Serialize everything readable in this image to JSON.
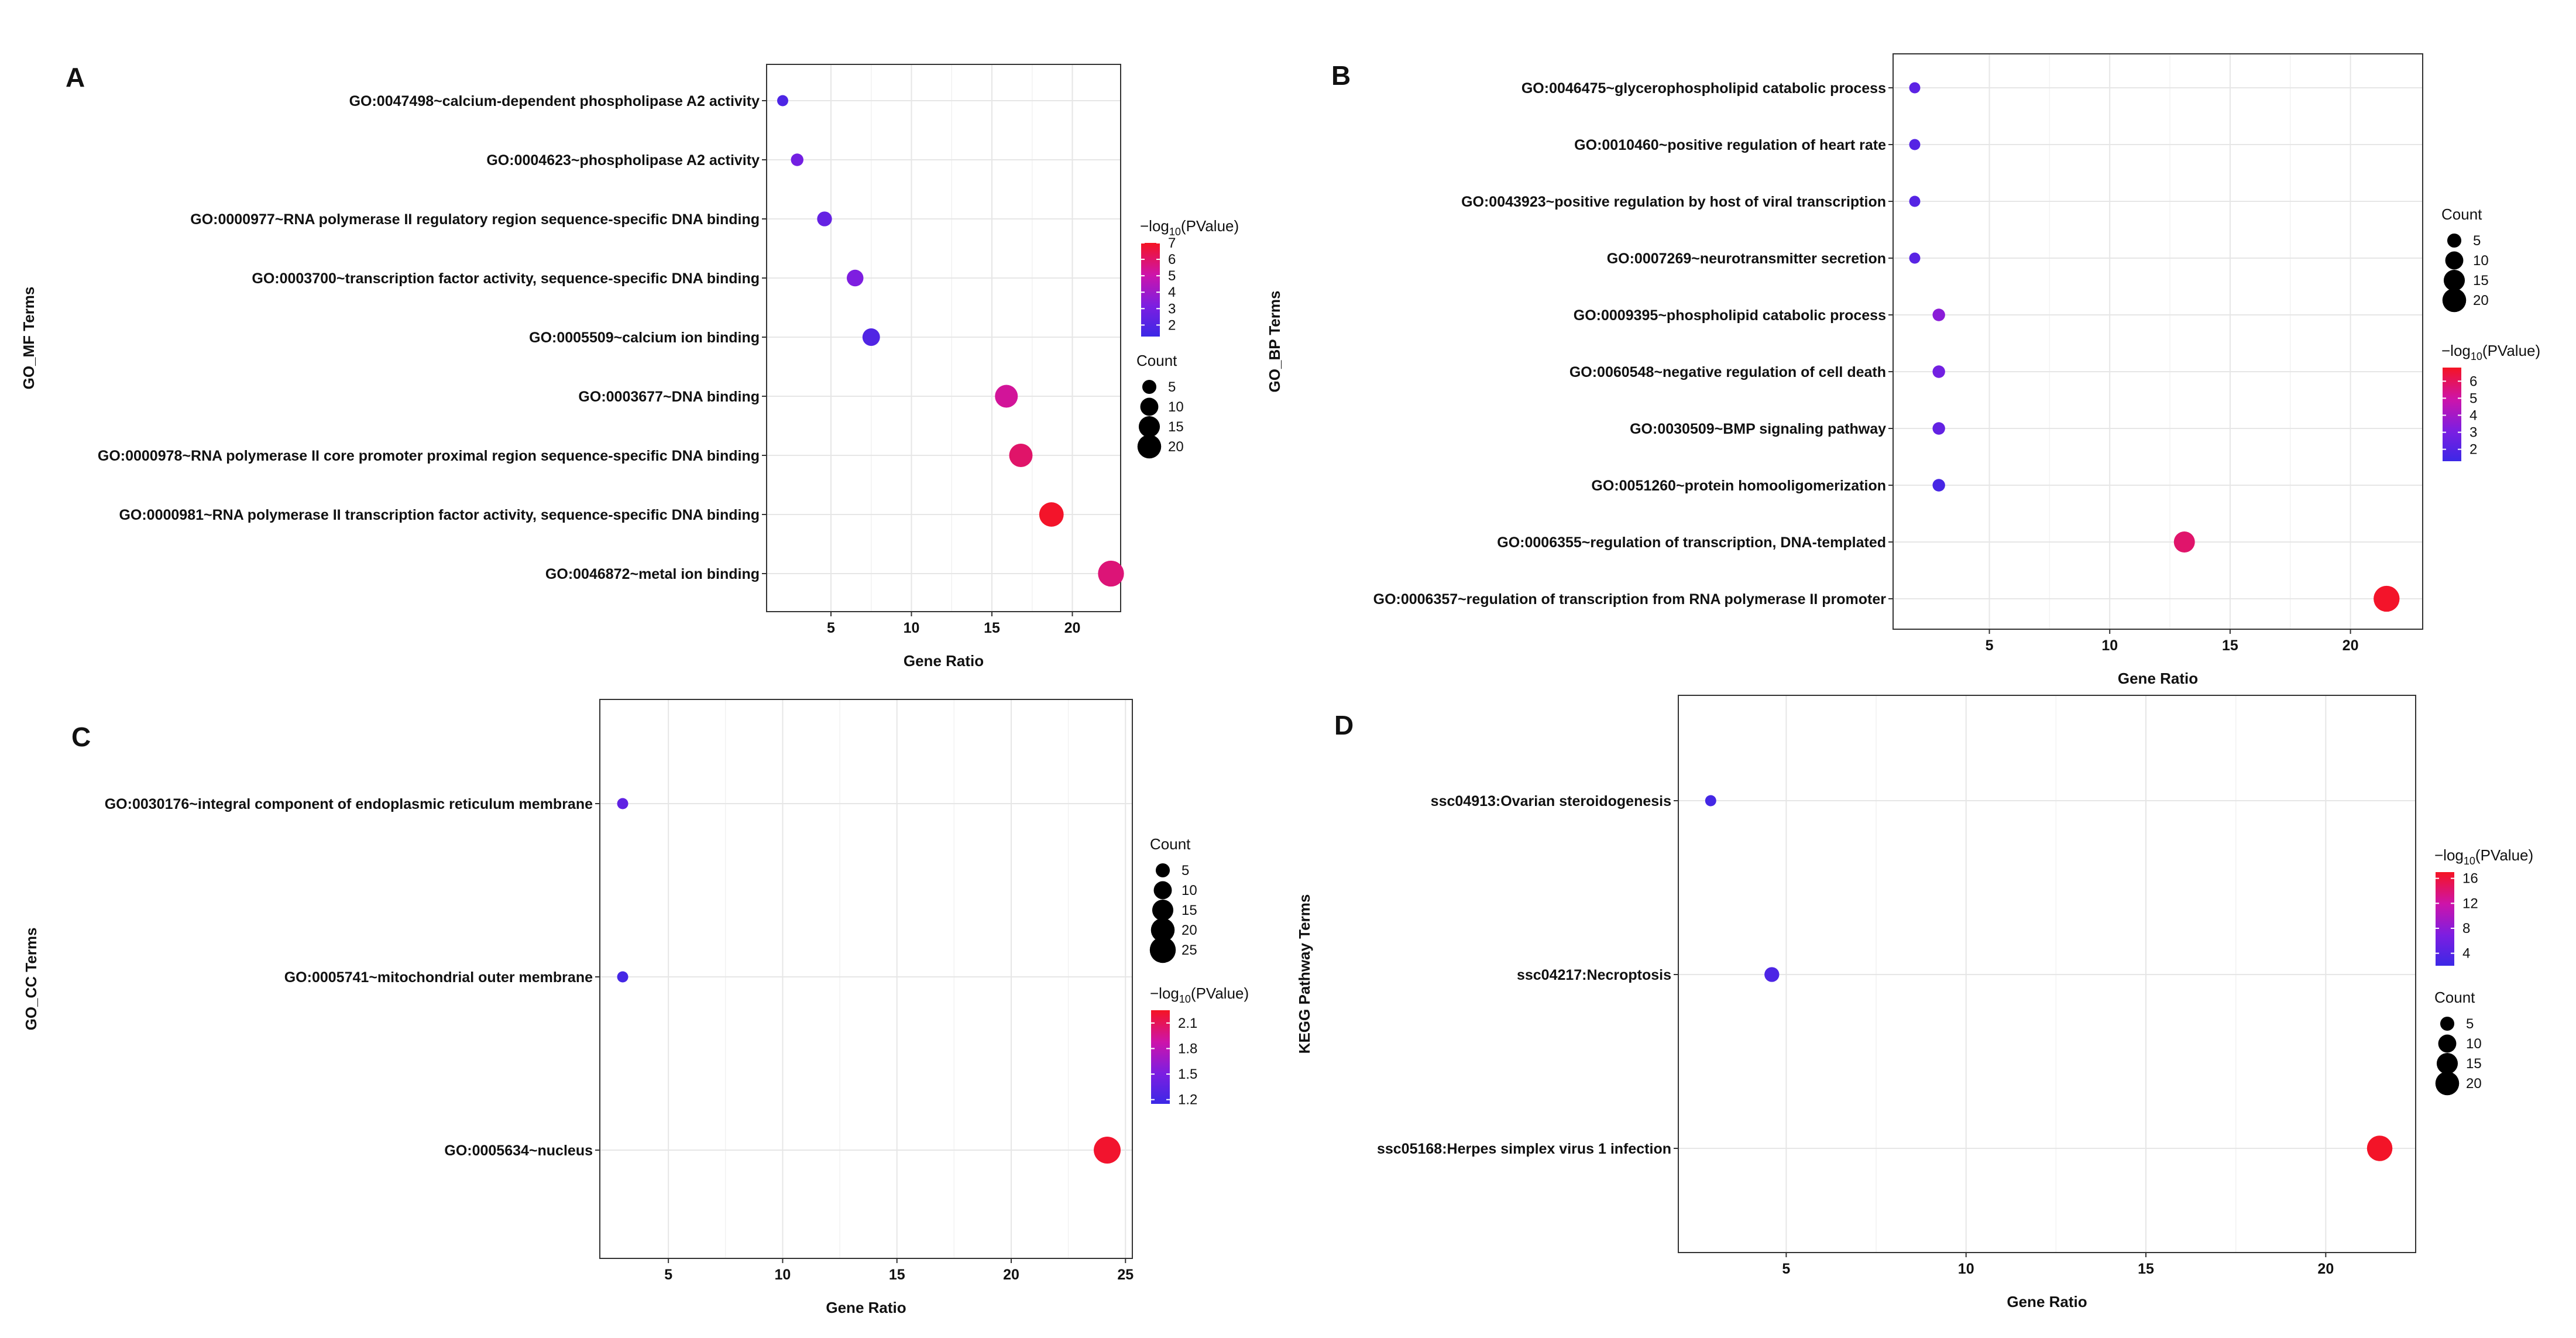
{
  "chart_data": [
    {
      "panel": "A",
      "type": "scatter",
      "xlabel": "Gene Ratio",
      "ylabel": "GO_MF Terms",
      "xlim": [
        1,
        23
      ],
      "xticks": [
        5,
        10,
        15,
        20
      ],
      "color_range": [
        1.3,
        7
      ],
      "colorbar_ticks": [
        2,
        3,
        4,
        5,
        6,
        7
      ],
      "size_ticks": [
        5,
        10,
        15,
        20
      ],
      "color_legend_title": "-log10(PValue)",
      "size_legend_title": "Count",
      "points": [
        {
          "term": "GO:0047498~calcium-dependent phospholipase A2 activity",
          "x": 2.0,
          "count": 2,
          "p": 1.8
        },
        {
          "term": "GO:0004623~phospholipase A2 activity",
          "x": 2.9,
          "count": 3,
          "p": 2.9
        },
        {
          "term": "GO:0000977~RNA polymerase II regulatory region sequence-specific DNA binding",
          "x": 4.6,
          "count": 5,
          "p": 2.5
        },
        {
          "term": "GO:0003700~transcription factor activity, sequence-specific DNA binding",
          "x": 6.5,
          "count": 7,
          "p": 3.2
        },
        {
          "term": "GO:0005509~calcium ion binding",
          "x": 7.5,
          "count": 8,
          "p": 1.9
        },
        {
          "term": "GO:0003677~DNA binding",
          "x": 15.9,
          "count": 16,
          "p": 5.3
        },
        {
          "term": "GO:0000978~RNA polymerase II core promoter proximal region sequence-specific DNA binding",
          "x": 16.8,
          "count": 17,
          "p": 6.0
        },
        {
          "term": "GO:0000981~RNA polymerase II transcription factor activity, sequence-specific DNA binding",
          "x": 18.7,
          "count": 19,
          "p": 6.9
        },
        {
          "term": "GO:0046872~metal ion binding",
          "x": 22.4,
          "count": 22,
          "p": 5.8
        }
      ]
    },
    {
      "panel": "B",
      "type": "scatter",
      "xlabel": "Gene Ratio",
      "ylabel": "GO_BP Terms",
      "xlim": [
        1,
        23
      ],
      "xticks": [
        5,
        10,
        15,
        20
      ],
      "color_range": [
        1.3,
        6.8
      ],
      "colorbar_ticks": [
        2,
        3,
        4,
        5,
        6
      ],
      "size_ticks": [
        5,
        10,
        15,
        20
      ],
      "color_legend_title": "-log10(PValue)",
      "size_legend_title": "Count",
      "points": [
        {
          "term": "GO:0046475~glycerophospholipid catabolic process",
          "x": 1.9,
          "count": 2,
          "p": 2.2
        },
        {
          "term": "GO:0010460~positive regulation of heart rate",
          "x": 1.9,
          "count": 2,
          "p": 2.0
        },
        {
          "term": "GO:0043923~positive regulation by host of viral transcription",
          "x": 1.9,
          "count": 2,
          "p": 2.0
        },
        {
          "term": "GO:0007269~neurotransmitter secretion",
          "x": 1.9,
          "count": 2,
          "p": 2.1
        },
        {
          "term": "GO:0009395~phospholipid catabolic process",
          "x": 2.9,
          "count": 3,
          "p": 3.4
        },
        {
          "term": "GO:0060548~negative regulation of cell death",
          "x": 2.9,
          "count": 3,
          "p": 2.8
        },
        {
          "term": "GO:0030509~BMP signaling pathway",
          "x": 2.9,
          "count": 3,
          "p": 2.4
        },
        {
          "term": "GO:0051260~protein homooligomerization",
          "x": 2.9,
          "count": 3,
          "p": 1.6
        },
        {
          "term": "GO:0006355~regulation of transcription, DNA-templated",
          "x": 13.1,
          "count": 13,
          "p": 5.8
        },
        {
          "term": "GO:0006357~regulation of transcription from RNA polymerase II promoter",
          "x": 21.5,
          "count": 22,
          "p": 6.7
        }
      ]
    },
    {
      "panel": "C",
      "type": "scatter",
      "xlabel": "Gene Ratio",
      "ylabel": "GO_CC Terms",
      "xlim": [
        2,
        25.3
      ],
      "xticks": [
        5,
        10,
        15,
        20,
        25
      ],
      "color_range": [
        1.15,
        2.25
      ],
      "colorbar_ticks": [
        1.2,
        1.5,
        1.8,
        2.1
      ],
      "size_ticks": [
        5,
        10,
        15,
        20,
        25
      ],
      "color_legend_title": "-log10(PValue)",
      "size_legend_title": "Count",
      "points": [
        {
          "term": "GO:0030176~integral component of endoplasmic reticulum membrane",
          "x": 3.0,
          "count": 2,
          "p": 1.35
        },
        {
          "term": "GO:0005741~mitochondrial outer membrane",
          "x": 3.0,
          "count": 2,
          "p": 1.2
        },
        {
          "term": "GO:0005634~nucleus",
          "x": 24.2,
          "count": 24,
          "p": 2.22
        }
      ]
    },
    {
      "panel": "D",
      "type": "scatter",
      "xlabel": "Gene Ratio",
      "ylabel": "KEGG Pathway Terms",
      "xlim": [
        2,
        22.5
      ],
      "xticks": [
        5,
        10,
        15,
        20
      ],
      "color_range": [
        2,
        17
      ],
      "colorbar_ticks": [
        4,
        8,
        12,
        16
      ],
      "size_ticks": [
        5,
        10,
        15,
        20
      ],
      "color_legend_title": "-log10(PValue)",
      "size_legend_title": "Count",
      "points": [
        {
          "term": "ssc04913:Ovarian steroidogenesis",
          "x": 2.9,
          "count": 2,
          "p": 2.6
        },
        {
          "term": "ssc04217:Necroptosis",
          "x": 4.6,
          "count": 5,
          "p": 3.3
        },
        {
          "term": "ssc05168:Herpes simplex virus 1 infection",
          "x": 21.5,
          "count": 21,
          "p": 16.8
        }
      ]
    }
  ]
}
